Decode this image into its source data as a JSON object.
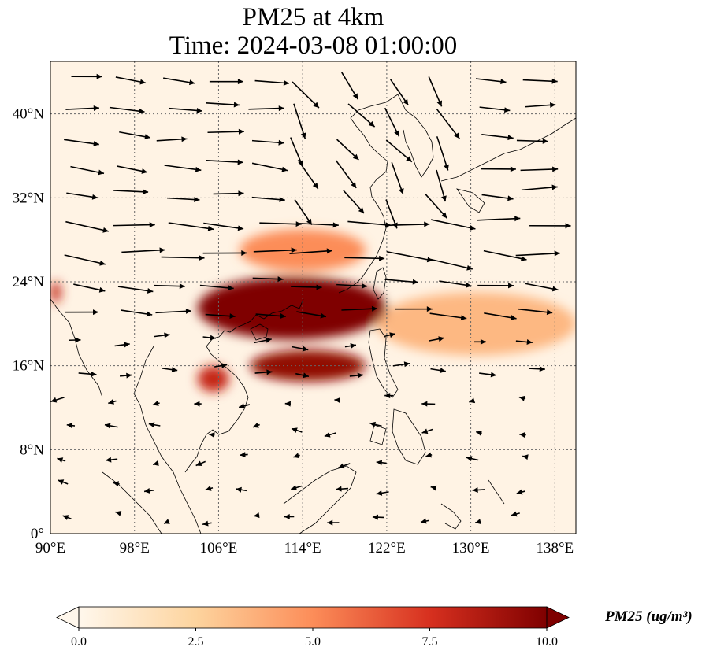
{
  "title_line1": "PM25 at 4km",
  "title_line2": "Time: 2024-03-08 01:00:00",
  "colorbar_label": "PM25 (ug/m³)",
  "chart_data": {
    "type": "heatmap",
    "variable": "PM25",
    "units": "ug/m3",
    "level": "4km",
    "time": "2024-03-08 01:00:00",
    "xlim": [
      90,
      140
    ],
    "ylim": [
      0,
      45
    ],
    "x_ticks": [
      90,
      98,
      106,
      114,
      122,
      130,
      138
    ],
    "x_tick_labels": [
      "90°E",
      "98°E",
      "106°E",
      "114°E",
      "122°E",
      "130°E",
      "138°E"
    ],
    "y_ticks": [
      0,
      8,
      16,
      24,
      32,
      40
    ],
    "y_tick_labels": [
      "0°",
      "8°N",
      "16°N",
      "24°N",
      "32°N",
      "40°N"
    ],
    "grid": true,
    "colormap": "OrRd",
    "color_range": [
      0,
      10
    ],
    "colorbar_ticks": [
      "0.0",
      "2.5",
      "5.0",
      "7.5",
      "10.0"
    ],
    "colorbar_extend": "both",
    "colors": [
      "#fff7ec",
      "#fdd49e",
      "#fc8d59",
      "#d7301f",
      "#7f0000"
    ],
    "high_concentration_regions": [
      {
        "lon": [
          104,
          122
        ],
        "lat": [
          18.5,
          24.5
        ],
        "value": 10
      },
      {
        "lon": [
          109,
          120
        ],
        "lat": [
          14.5,
          17.5
        ],
        "value": 9.5
      },
      {
        "lon": [
          104,
          107
        ],
        "lat": [
          13.5,
          16
        ],
        "value": 8
      },
      {
        "lon": [
          108,
          120
        ],
        "lat": [
          25,
          29
        ],
        "value": 5
      },
      {
        "lon": [
          121,
          140
        ],
        "lat": [
          17,
          23
        ],
        "value": 3.5
      },
      {
        "lon": [
          90,
          91
        ],
        "lat": [
          22,
          24
        ],
        "value": 8
      }
    ],
    "wind_vectors": "arrows; westerly flow north of ~20°N, easterly flow south of ~16°N"
  }
}
